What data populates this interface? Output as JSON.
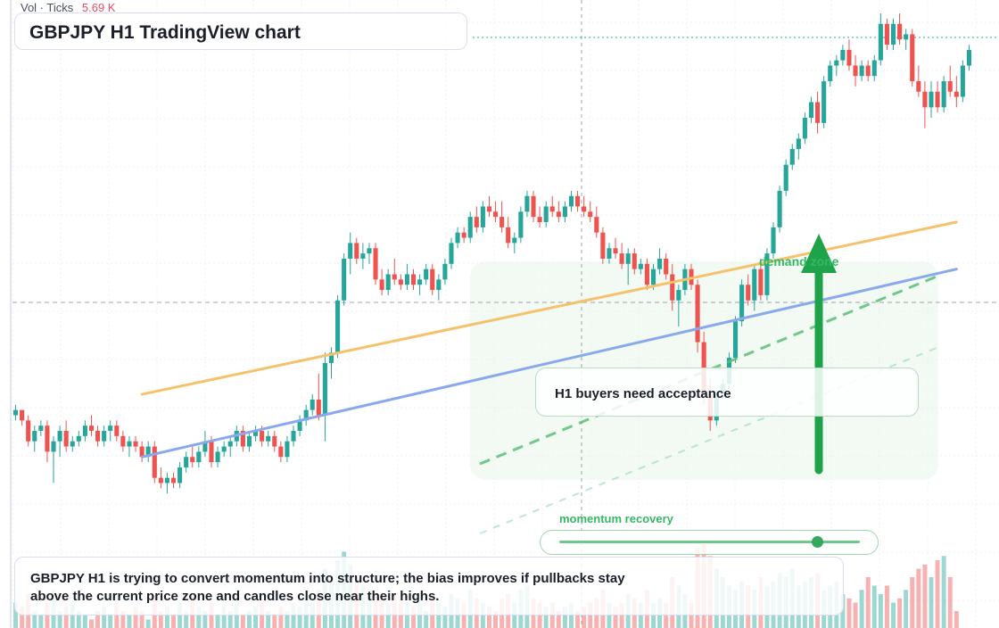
{
  "header": {
    "title": "GBPJPY H1 TradingView chart",
    "volume_label": "Vol · Ticks",
    "volume_value": "5.69 K"
  },
  "annotations": {
    "zone_label": "demand zone",
    "note": "H1 buyers need acceptance",
    "momentum_label": "momentum recovery",
    "momentum_level": 0.86,
    "summary": "GBPJPY H1 is trying to convert momentum into structure; the bias improves if pullbacks stay above the current price zone and candles close near their highs."
  },
  "colors": {
    "up": "#26a69a",
    "down": "#ef5350",
    "trend_upper": "#f5c26b",
    "trend_lower": "#8aa8ec",
    "accent_green": "#1fa34a",
    "zone_fill": "#e8f6ea"
  },
  "chart_data": {
    "type": "candlestick",
    "interval": "H1",
    "symbol": "GBPJPY",
    "bars": 150,
    "ohlc": [
      [
        0.23,
        0.25,
        0.22,
        0.24
      ],
      [
        0.24,
        0.24,
        0.21,
        0.22
      ],
      [
        0.22,
        0.23,
        0.17,
        0.18
      ],
      [
        0.18,
        0.21,
        0.16,
        0.2
      ],
      [
        0.2,
        0.22,
        0.19,
        0.21
      ],
      [
        0.21,
        0.22,
        0.14,
        0.16
      ],
      [
        0.16,
        0.19,
        0.1,
        0.18
      ],
      [
        0.18,
        0.21,
        0.15,
        0.2
      ],
      [
        0.2,
        0.22,
        0.16,
        0.17
      ],
      [
        0.17,
        0.19,
        0.16,
        0.18
      ],
      [
        0.18,
        0.2,
        0.17,
        0.19
      ],
      [
        0.19,
        0.22,
        0.18,
        0.21
      ],
      [
        0.21,
        0.23,
        0.19,
        0.2
      ],
      [
        0.2,
        0.21,
        0.17,
        0.18
      ],
      [
        0.18,
        0.21,
        0.17,
        0.2
      ],
      [
        0.2,
        0.22,
        0.18,
        0.21
      ],
      [
        0.21,
        0.22,
        0.18,
        0.19
      ],
      [
        0.19,
        0.2,
        0.16,
        0.17
      ],
      [
        0.17,
        0.19,
        0.15,
        0.18
      ],
      [
        0.18,
        0.19,
        0.16,
        0.17
      ],
      [
        0.17,
        0.18,
        0.14,
        0.15
      ],
      [
        0.15,
        0.18,
        0.14,
        0.17
      ],
      [
        0.17,
        0.18,
        0.1,
        0.11
      ],
      [
        0.11,
        0.13,
        0.09,
        0.1
      ],
      [
        0.1,
        0.12,
        0.08,
        0.11
      ],
      [
        0.11,
        0.12,
        0.09,
        0.1
      ],
      [
        0.1,
        0.14,
        0.09,
        0.13
      ],
      [
        0.13,
        0.16,
        0.12,
        0.15
      ],
      [
        0.15,
        0.17,
        0.13,
        0.14
      ],
      [
        0.14,
        0.17,
        0.13,
        0.16
      ],
      [
        0.16,
        0.2,
        0.15,
        0.18
      ],
      [
        0.18,
        0.19,
        0.13,
        0.14
      ],
      [
        0.14,
        0.17,
        0.13,
        0.16
      ],
      [
        0.16,
        0.18,
        0.15,
        0.17
      ],
      [
        0.17,
        0.19,
        0.15,
        0.18
      ],
      [
        0.18,
        0.21,
        0.17,
        0.2
      ],
      [
        0.2,
        0.21,
        0.16,
        0.17
      ],
      [
        0.17,
        0.2,
        0.16,
        0.19
      ],
      [
        0.19,
        0.21,
        0.18,
        0.2
      ],
      [
        0.2,
        0.21,
        0.17,
        0.18
      ],
      [
        0.18,
        0.2,
        0.17,
        0.19
      ],
      [
        0.19,
        0.2,
        0.16,
        0.17
      ],
      [
        0.17,
        0.18,
        0.14,
        0.15
      ],
      [
        0.15,
        0.19,
        0.14,
        0.18
      ],
      [
        0.18,
        0.21,
        0.17,
        0.2
      ],
      [
        0.2,
        0.23,
        0.19,
        0.22
      ],
      [
        0.22,
        0.25,
        0.21,
        0.24
      ],
      [
        0.24,
        0.27,
        0.23,
        0.26
      ],
      [
        0.26,
        0.31,
        0.22,
        0.23
      ],
      [
        0.23,
        0.35,
        0.18,
        0.33
      ],
      [
        0.33,
        0.36,
        0.3,
        0.35
      ],
      [
        0.35,
        0.46,
        0.34,
        0.45
      ],
      [
        0.45,
        0.54,
        0.44,
        0.53
      ],
      [
        0.53,
        0.58,
        0.5,
        0.56
      ],
      [
        0.56,
        0.57,
        0.52,
        0.53
      ],
      [
        0.53,
        0.56,
        0.51,
        0.54
      ],
      [
        0.54,
        0.56,
        0.52,
        0.55
      ],
      [
        0.55,
        0.56,
        0.48,
        0.49
      ],
      [
        0.49,
        0.51,
        0.46,
        0.47
      ],
      [
        0.47,
        0.51,
        0.46,
        0.5
      ],
      [
        0.5,
        0.53,
        0.48,
        0.49
      ],
      [
        0.49,
        0.5,
        0.47,
        0.48
      ],
      [
        0.48,
        0.52,
        0.47,
        0.5
      ],
      [
        0.5,
        0.51,
        0.47,
        0.48
      ],
      [
        0.48,
        0.5,
        0.46,
        0.49
      ],
      [
        0.49,
        0.52,
        0.48,
        0.51
      ],
      [
        0.51,
        0.52,
        0.46,
        0.47
      ],
      [
        0.47,
        0.5,
        0.45,
        0.49
      ],
      [
        0.49,
        0.53,
        0.48,
        0.52
      ],
      [
        0.52,
        0.57,
        0.51,
        0.56
      ],
      [
        0.56,
        0.59,
        0.55,
        0.58
      ],
      [
        0.58,
        0.59,
        0.56,
        0.57
      ],
      [
        0.57,
        0.62,
        0.56,
        0.61
      ],
      [
        0.61,
        0.63,
        0.58,
        0.59
      ],
      [
        0.59,
        0.64,
        0.58,
        0.63
      ],
      [
        0.63,
        0.65,
        0.61,
        0.62
      ],
      [
        0.62,
        0.64,
        0.6,
        0.61
      ],
      [
        0.61,
        0.64,
        0.58,
        0.59
      ],
      [
        0.59,
        0.61,
        0.55,
        0.56
      ],
      [
        0.56,
        0.58,
        0.54,
        0.57
      ],
      [
        0.57,
        0.63,
        0.56,
        0.62
      ],
      [
        0.62,
        0.66,
        0.61,
        0.65
      ],
      [
        0.65,
        0.66,
        0.6,
        0.61
      ],
      [
        0.61,
        0.63,
        0.59,
        0.6
      ],
      [
        0.6,
        0.64,
        0.59,
        0.63
      ],
      [
        0.63,
        0.65,
        0.61,
        0.62
      ],
      [
        0.62,
        0.64,
        0.6,
        0.61
      ],
      [
        0.61,
        0.64,
        0.6,
        0.63
      ],
      [
        0.63,
        0.66,
        0.62,
        0.65
      ],
      [
        0.65,
        0.66,
        0.62,
        0.63
      ],
      [
        0.63,
        0.65,
        0.61,
        0.62
      ],
      [
        0.62,
        0.64,
        0.6,
        0.61
      ],
      [
        0.61,
        0.63,
        0.57,
        0.58
      ],
      [
        0.58,
        0.59,
        0.52,
        0.53
      ],
      [
        0.53,
        0.56,
        0.52,
        0.55
      ],
      [
        0.55,
        0.57,
        0.53,
        0.54
      ],
      [
        0.54,
        0.56,
        0.51,
        0.52
      ],
      [
        0.52,
        0.55,
        0.48,
        0.54
      ],
      [
        0.54,
        0.55,
        0.5,
        0.51
      ],
      [
        0.51,
        0.53,
        0.5,
        0.52
      ],
      [
        0.52,
        0.53,
        0.47,
        0.48
      ],
      [
        0.48,
        0.52,
        0.47,
        0.51
      ],
      [
        0.51,
        0.55,
        0.5,
        0.53
      ],
      [
        0.53,
        0.54,
        0.49,
        0.5
      ],
      [
        0.5,
        0.52,
        0.43,
        0.45
      ],
      [
        0.45,
        0.48,
        0.4,
        0.47
      ],
      [
        0.47,
        0.52,
        0.46,
        0.51
      ],
      [
        0.51,
        0.52,
        0.47,
        0.48
      ],
      [
        0.48,
        0.49,
        0.35,
        0.37
      ],
      [
        0.37,
        0.39,
        0.25,
        0.27
      ],
      [
        0.27,
        0.3,
        0.2,
        0.22
      ],
      [
        0.22,
        0.28,
        0.21,
        0.27
      ],
      [
        0.27,
        0.3,
        0.26,
        0.29
      ],
      [
        0.29,
        0.35,
        0.28,
        0.34
      ],
      [
        0.34,
        0.42,
        0.33,
        0.41
      ],
      [
        0.41,
        0.49,
        0.4,
        0.48
      ],
      [
        0.48,
        0.5,
        0.44,
        0.45
      ],
      [
        0.45,
        0.52,
        0.43,
        0.51
      ],
      [
        0.51,
        0.53,
        0.45,
        0.46
      ],
      [
        0.46,
        0.55,
        0.45,
        0.54
      ],
      [
        0.54,
        0.6,
        0.53,
        0.59
      ],
      [
        0.59,
        0.67,
        0.58,
        0.66
      ],
      [
        0.66,
        0.72,
        0.65,
        0.71
      ],
      [
        0.71,
        0.75,
        0.7,
        0.74
      ],
      [
        0.74,
        0.77,
        0.72,
        0.76
      ],
      [
        0.76,
        0.81,
        0.75,
        0.8
      ],
      [
        0.8,
        0.84,
        0.79,
        0.83
      ],
      [
        0.83,
        0.85,
        0.77,
        0.79
      ],
      [
        0.79,
        0.88,
        0.78,
        0.87
      ],
      [
        0.87,
        0.91,
        0.86,
        0.9
      ],
      [
        0.9,
        0.92,
        0.88,
        0.91
      ],
      [
        0.91,
        0.94,
        0.9,
        0.93
      ],
      [
        0.93,
        0.95,
        0.89,
        0.9
      ],
      [
        0.9,
        0.92,
        0.86,
        0.88
      ],
      [
        0.88,
        0.91,
        0.87,
        0.9
      ],
      [
        0.9,
        0.91,
        0.87,
        0.88
      ],
      [
        0.88,
        0.92,
        0.87,
        0.91
      ],
      [
        0.91,
        1.0,
        0.9,
        0.98
      ],
      [
        0.98,
        0.99,
        0.93,
        0.94
      ],
      [
        0.94,
        0.99,
        0.93,
        0.98
      ],
      [
        0.98,
        1.0,
        0.94,
        0.95
      ],
      [
        0.95,
        0.97,
        0.93,
        0.96
      ],
      [
        0.96,
        0.97,
        0.86,
        0.87
      ],
      [
        0.87,
        0.9,
        0.84,
        0.85
      ],
      [
        0.85,
        0.87,
        0.78,
        0.82
      ],
      [
        0.82,
        0.87,
        0.8,
        0.85
      ],
      [
        0.85,
        0.87,
        0.81,
        0.82
      ],
      [
        0.82,
        0.88,
        0.81,
        0.87
      ],
      [
        0.87,
        0.9,
        0.84,
        0.85
      ],
      [
        0.85,
        0.88,
        0.82,
        0.84
      ],
      [
        0.84,
        0.91,
        0.83,
        0.9
      ],
      [
        0.9,
        0.94,
        0.89,
        0.93
      ]
    ],
    "volume": [
      0.3,
      0.25,
      0.4,
      0.2,
      0.15,
      0.3,
      0.45,
      0.2,
      0.25,
      0.3,
      0.2,
      0.15,
      0.1,
      0.2,
      0.25,
      0.15,
      0.3,
      0.2,
      0.15,
      0.25,
      0.2,
      0.1,
      0.35,
      0.2,
      0.25,
      0.15,
      0.3,
      0.2,
      0.4,
      0.25,
      0.2,
      0.3,
      0.15,
      0.25,
      0.2,
      0.3,
      0.15,
      0.2,
      0.25,
      0.3,
      0.2,
      0.15,
      0.25,
      0.2,
      0.3,
      0.25,
      0.35,
      0.3,
      0.45,
      0.7,
      0.55,
      0.8,
      0.9,
      0.75,
      0.6,
      0.5,
      0.45,
      0.4,
      0.35,
      0.3,
      0.4,
      0.35,
      0.3,
      0.25,
      0.3,
      0.2,
      0.35,
      0.3,
      0.25,
      0.4,
      0.35,
      0.3,
      0.45,
      0.35,
      0.3,
      0.25,
      0.2,
      0.35,
      0.4,
      0.3,
      0.45,
      0.5,
      0.35,
      0.3,
      0.25,
      0.3,
      0.2,
      0.25,
      0.3,
      0.2,
      0.25,
      0.3,
      0.35,
      0.45,
      0.3,
      0.25,
      0.3,
      0.4,
      0.35,
      0.3,
      0.45,
      0.3,
      0.35,
      0.3,
      0.6,
      0.5,
      0.4,
      0.3,
      0.95,
      1.0,
      0.85,
      0.7,
      0.6,
      0.5,
      0.45,
      0.55,
      0.5,
      0.45,
      0.6,
      0.5,
      0.55,
      0.65,
      0.6,
      0.7,
      0.5,
      0.55,
      0.6,
      0.65,
      0.45,
      0.5,
      0.55,
      0.4,
      0.35,
      0.3,
      0.45,
      0.6,
      0.5,
      0.4,
      0.5,
      0.3,
      0.35,
      0.45,
      0.6,
      0.7,
      0.75,
      0.6,
      0.8,
      0.85,
      0.6,
      0.2
    ],
    "price_range": [
      0,
      1
    ],
    "grid": true,
    "trendlines": [
      {
        "color": "trend_upper",
        "from": [
          20,
          0.27
        ],
        "to": [
          150,
          0.6
        ]
      },
      {
        "color": "trend_lower",
        "from": [
          20,
          0.15
        ],
        "to": [
          150,
          0.51
        ]
      }
    ]
  }
}
